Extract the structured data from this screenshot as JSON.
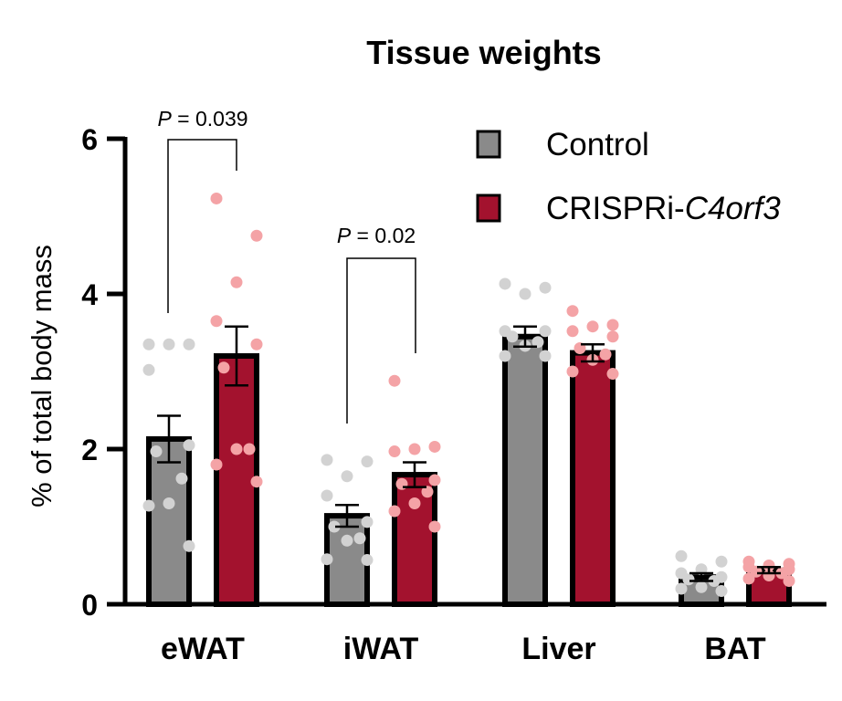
{
  "chart_data": {
    "type": "bar",
    "title": "Tissue weights",
    "ylabel": "% of total body mass",
    "xlabel": "",
    "ylim": [
      0,
      6
    ],
    "yticks": [
      0,
      2,
      4,
      6
    ],
    "categories": [
      "eWAT",
      "iWAT",
      "Liver",
      "BAT"
    ],
    "legend_position": "top-right",
    "colors": {
      "control_bar": "#8a8a8a",
      "control_dot": "#d2d2d2",
      "treat_bar": "#a3122e",
      "treat_dot": "#f4a3a6"
    },
    "series": [
      {
        "name": "Control",
        "italic_suffix": "",
        "values": [
          2.13,
          1.14,
          3.45,
          0.35
        ],
        "errors": [
          0.3,
          0.14,
          0.13,
          0.05
        ],
        "points": [
          [
            3.35,
            3.35,
            3.35,
            3.02,
            2.05,
            1.97,
            1.62,
            1.3,
            1.27,
            0.75
          ],
          [
            1.86,
            1.84,
            1.65,
            1.4,
            1.06,
            1.0,
            0.85,
            0.82,
            0.58,
            0.57
          ],
          [
            4.13,
            4.08,
            4.0,
            3.52,
            3.52,
            3.45,
            3.38,
            3.33,
            3.2,
            3.2
          ],
          [
            0.62,
            0.55,
            0.45,
            0.4,
            0.35,
            0.32,
            0.3,
            0.22,
            0.2,
            0.17
          ]
        ]
      },
      {
        "name": "CRISPRi-",
        "italic_suffix": "C4orf3",
        "values": [
          3.2,
          1.67,
          3.24,
          0.44
        ],
        "errors": [
          0.38,
          0.16,
          0.11,
          0.04
        ],
        "points": [
          [
            5.23,
            4.75,
            4.15,
            3.65,
            3.35,
            3.05,
            2.0,
            2.0,
            1.8,
            1.58
          ],
          [
            2.88,
            2.03,
            2.0,
            1.97,
            1.6,
            1.55,
            1.45,
            1.3,
            1.2,
            1.0
          ],
          [
            3.78,
            3.6,
            3.58,
            3.52,
            3.45,
            3.3,
            3.22,
            3.15,
            3.0,
            2.97
          ],
          [
            0.55,
            0.52,
            0.5,
            0.48,
            0.45,
            0.42,
            0.4,
            0.37,
            0.33,
            0.3
          ]
        ]
      }
    ],
    "annotations": [
      {
        "category": "eWAT",
        "p_label": "P",
        "p_value": "= 0.039"
      },
      {
        "category": "iWAT",
        "p_label": "P",
        "p_value": "= 0.02"
      }
    ]
  }
}
